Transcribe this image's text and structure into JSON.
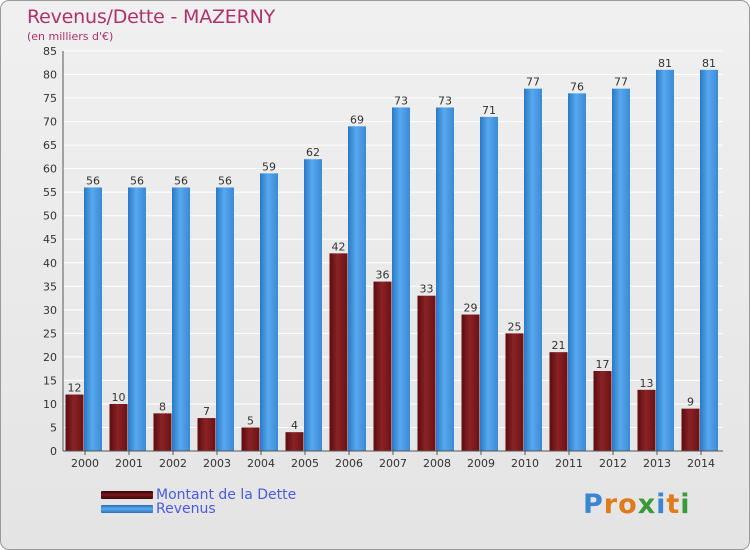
{
  "title": "Revenus/Dette - MAZERNY",
  "subtitle": "(en milliers d'€)",
  "colors": {
    "title": "#b0306a",
    "dette": "#7b1a1c",
    "revenus": "#3d8fd8",
    "legend_text": "#4a5be0",
    "grid": "#ffffff"
  },
  "legend": [
    {
      "label": "Montant de la Dette",
      "color": "#7b1a1c"
    },
    {
      "label": "Revenus",
      "color": "#3d8fd8"
    }
  ],
  "logo": {
    "text": "Proxiti"
  },
  "chart_data": {
    "type": "bar",
    "title": "Revenus/Dette - MAZERNY",
    "subtitle": "(en milliers d'€)",
    "categories": [
      "2000",
      "2001",
      "2002",
      "2003",
      "2004",
      "2005",
      "2006",
      "2007",
      "2008",
      "2009",
      "2010",
      "2011",
      "2012",
      "2013",
      "2014"
    ],
    "series": [
      {
        "name": "Montant de la Dette",
        "values": [
          12,
          10,
          8,
          7,
          5,
          4,
          42,
          36,
          33,
          29,
          25,
          21,
          17,
          13,
          9
        ]
      },
      {
        "name": "Revenus",
        "values": [
          56,
          56,
          56,
          56,
          59,
          62,
          69,
          73,
          73,
          71,
          77,
          76,
          77,
          81,
          81
        ]
      }
    ],
    "ylim": [
      0,
      85
    ],
    "yticks": [
      0,
      5,
      10,
      15,
      20,
      25,
      30,
      35,
      40,
      45,
      50,
      55,
      60,
      65,
      70,
      75,
      80,
      85
    ],
    "grid": true,
    "legend_position": "bottom-left",
    "data_labels": true
  }
}
